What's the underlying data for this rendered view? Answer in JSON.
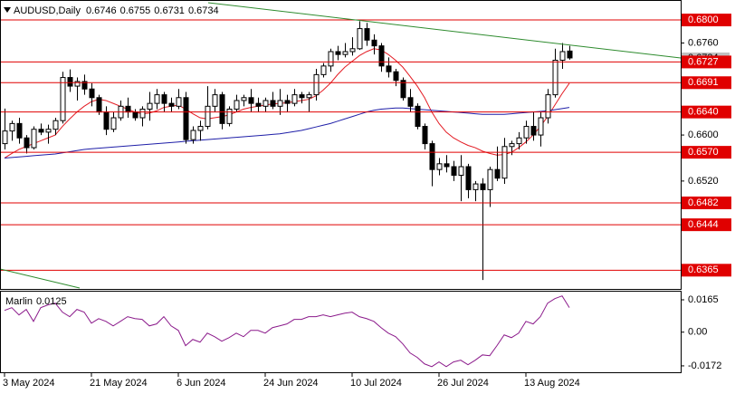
{
  "chart_data": [
    {
      "type": "candlestick",
      "title": "AUDUSD,Daily",
      "categories": [
        "3 May 2024",
        null,
        null,
        null,
        null,
        null,
        null,
        null,
        null,
        null,
        null,
        null,
        "21 May 2024",
        null,
        null,
        null,
        null,
        null,
        null,
        null,
        null,
        null,
        null,
        null,
        "6 Jun 2024",
        null,
        null,
        null,
        null,
        null,
        null,
        null,
        null,
        null,
        null,
        null,
        "24 Jun 2024",
        null,
        null,
        null,
        null,
        null,
        null,
        null,
        null,
        null,
        null,
        null,
        "10 Jul 2024",
        null,
        null,
        null,
        null,
        null,
        null,
        null,
        null,
        null,
        null,
        null,
        "26 Jul 2024",
        null,
        null,
        null,
        null,
        null,
        null,
        null,
        null,
        null,
        null,
        null,
        "13 Aug 2024",
        null,
        null,
        null,
        null,
        null,
        null
      ],
      "open": [
        0.6585,
        0.6607,
        0.662,
        0.6595,
        0.6578,
        0.661,
        0.6605,
        0.661,
        0.6625,
        0.67,
        0.6685,
        0.6693,
        0.668,
        0.6665,
        0.664,
        0.661,
        0.663,
        0.665,
        0.664,
        0.663,
        0.6645,
        0.6655,
        0.667,
        0.6655,
        0.665,
        0.6665,
        0.6592,
        0.6608,
        0.6615,
        0.665,
        0.667,
        0.662,
        0.6645,
        0.666,
        0.6665,
        0.6655,
        0.665,
        0.666,
        0.665,
        0.666,
        0.6655,
        0.667,
        0.6665,
        0.667,
        0.6705,
        0.672,
        0.6745,
        0.674,
        0.6745,
        0.675,
        0.6785,
        0.6765,
        0.6755,
        0.672,
        0.671,
        0.6695,
        0.6665,
        0.665,
        0.6615,
        0.6585,
        0.654,
        0.655,
        0.6545,
        0.653,
        0.6545,
        0.6505,
        0.6515,
        0.6505,
        0.654,
        0.6525,
        0.658,
        0.6585,
        0.6595,
        0.6615,
        0.66,
        0.663,
        0.667,
        0.673,
        0.6746
      ],
      "high": [
        0.6646,
        0.6625,
        0.663,
        0.66,
        0.6615,
        0.662,
        0.6618,
        0.663,
        0.671,
        0.6714,
        0.67,
        0.6705,
        0.669,
        0.667,
        0.665,
        0.664,
        0.666,
        0.6665,
        0.6645,
        0.665,
        0.6675,
        0.668,
        0.6675,
        0.6665,
        0.668,
        0.6675,
        0.6615,
        0.6625,
        0.6685,
        0.668,
        0.6675,
        0.665,
        0.667,
        0.667,
        0.668,
        0.6665,
        0.6665,
        0.6675,
        0.668,
        0.667,
        0.668,
        0.6675,
        0.6675,
        0.6715,
        0.6725,
        0.675,
        0.6755,
        0.676,
        0.677,
        0.6798,
        0.6795,
        0.6775,
        0.676,
        0.6735,
        0.6715,
        0.67,
        0.668,
        0.6655,
        0.662,
        0.659,
        0.656,
        0.6565,
        0.6555,
        0.6565,
        0.655,
        0.652,
        0.6525,
        0.6545,
        0.658,
        0.6595,
        0.659,
        0.6605,
        0.6625,
        0.664,
        0.664,
        0.668,
        0.675,
        0.676,
        0.6755
      ],
      "low": [
        0.6575,
        0.659,
        0.6585,
        0.6568,
        0.6575,
        0.66,
        0.6585,
        0.66,
        0.662,
        0.6675,
        0.666,
        0.667,
        0.665,
        0.6635,
        0.66,
        0.6605,
        0.6625,
        0.663,
        0.6625,
        0.6615,
        0.6625,
        0.6645,
        0.664,
        0.664,
        0.6645,
        0.6585,
        0.6585,
        0.659,
        0.661,
        0.664,
        0.661,
        0.6615,
        0.664,
        0.665,
        0.664,
        0.664,
        0.664,
        0.6645,
        0.6635,
        0.664,
        0.665,
        0.6655,
        0.664,
        0.666,
        0.67,
        0.671,
        0.673,
        0.6735,
        0.6738,
        0.6748,
        0.6755,
        0.674,
        0.671,
        0.67,
        0.6685,
        0.666,
        0.664,
        0.661,
        0.6575,
        0.6511,
        0.653,
        0.6535,
        0.652,
        0.6485,
        0.649,
        0.6485,
        0.6348,
        0.6475,
        0.652,
        0.6515,
        0.6565,
        0.6575,
        0.6585,
        0.659,
        0.658,
        0.662,
        0.6665,
        0.6715,
        0.6731
      ],
      "close": [
        0.6607,
        0.662,
        0.6595,
        0.6578,
        0.661,
        0.6605,
        0.661,
        0.6625,
        0.67,
        0.6685,
        0.6693,
        0.668,
        0.6665,
        0.664,
        0.661,
        0.663,
        0.665,
        0.664,
        0.663,
        0.6645,
        0.6655,
        0.667,
        0.6655,
        0.665,
        0.6665,
        0.6592,
        0.6608,
        0.6615,
        0.665,
        0.667,
        0.662,
        0.6645,
        0.666,
        0.6665,
        0.6655,
        0.665,
        0.666,
        0.665,
        0.666,
        0.6655,
        0.667,
        0.6665,
        0.667,
        0.6705,
        0.672,
        0.6745,
        0.674,
        0.6745,
        0.675,
        0.6785,
        0.6765,
        0.6755,
        0.672,
        0.671,
        0.6695,
        0.6665,
        0.665,
        0.6615,
        0.6585,
        0.654,
        0.655,
        0.6545,
        0.653,
        0.6545,
        0.6505,
        0.6515,
        0.6505,
        0.654,
        0.6525,
        0.658,
        0.6585,
        0.6595,
        0.6615,
        0.66,
        0.663,
        0.667,
        0.673,
        0.6745,
        0.6734
      ],
      "series": [
        {
          "color": "#e31b23",
          "values": [
            0.656,
            0.6568,
            0.6575,
            0.658,
            0.6585,
            0.659,
            0.6595,
            0.66,
            0.6615,
            0.6628,
            0.664,
            0.665,
            0.6658,
            0.6662,
            0.666,
            0.6655,
            0.665,
            0.6645,
            0.664,
            0.6637,
            0.6638,
            0.6642,
            0.6648,
            0.665,
            0.6652,
            0.6645,
            0.6637,
            0.663,
            0.6628,
            0.663,
            0.6632,
            0.6635,
            0.664,
            0.6645,
            0.6648,
            0.665,
            0.6652,
            0.6654,
            0.6655,
            0.6656,
            0.6658,
            0.666,
            0.6662,
            0.6668,
            0.6678,
            0.669,
            0.6705,
            0.6718,
            0.6728,
            0.6738,
            0.6745,
            0.675,
            0.6748,
            0.674,
            0.673,
            0.6718,
            0.6702,
            0.6685,
            0.6665,
            0.664,
            0.662,
            0.6605,
            0.6595,
            0.6588,
            0.6582,
            0.6578,
            0.6572,
            0.6568,
            0.6565,
            0.6566,
            0.657,
            0.6578,
            0.6588,
            0.66,
            0.6615,
            0.6632,
            0.6652,
            0.6672,
            0.669
          ]
        },
        {
          "color": "#1f1fa8",
          "values": [
            0.656,
            0.6561,
            0.6562,
            0.6563,
            0.6564,
            0.6565,
            0.6566,
            0.6567,
            0.6569,
            0.6571,
            0.6573,
            0.6575,
            0.6576,
            0.6577,
            0.6578,
            0.6579,
            0.658,
            0.6581,
            0.6582,
            0.6583,
            0.6584,
            0.6585,
            0.6586,
            0.6587,
            0.6588,
            0.6589,
            0.659,
            0.6591,
            0.6592,
            0.6593,
            0.6594,
            0.6595,
            0.6596,
            0.6597,
            0.6598,
            0.6599,
            0.66,
            0.6601,
            0.6602,
            0.6604,
            0.6606,
            0.6608,
            0.6611,
            0.6614,
            0.6617,
            0.662,
            0.6624,
            0.6628,
            0.6632,
            0.6636,
            0.664,
            0.6643,
            0.6645,
            0.6646,
            0.6647,
            0.6647,
            0.6646,
            0.6645,
            0.6644,
            0.6643,
            0.6642,
            0.6641,
            0.664,
            0.6639,
            0.6638,
            0.6637,
            0.6636,
            0.6636,
            0.6636,
            0.6636,
            0.6637,
            0.6638,
            0.6639,
            0.664,
            0.6641,
            0.6642,
            0.6644,
            0.6646,
            0.6648
          ]
        }
      ],
      "levels": [
        {
          "value": 0.68,
          "label": "0.6800"
        },
        0.6727,
        0.6691,
        {
          "value": 0.664,
          "label": "0.6640"
        },
        {
          "value": 0.657,
          "label": "0.6570"
        },
        0.6482,
        0.6444,
        0.6365
      ],
      "level_color": "#e00000",
      "ylim": [
        0.6334,
        0.683
      ],
      "yticks": [
        {
          "value": 0.676,
          "label": "0.6760"
        },
        {
          "value": 0.66,
          "label": "0.6600"
        },
        {
          "value": 0.652,
          "label": "0.6520"
        }
      ]
    },
    {
      "type": "line",
      "name": "Marlin",
      "color": "#8b1a8b",
      "values": [
        0.0111,
        0.0125,
        0.0088,
        0.0116,
        0.0055,
        0.0125,
        0.0139,
        0.0148,
        0.0102,
        0.0079,
        0.0116,
        0.0102,
        0.0046,
        0.0069,
        0.0055,
        0.0032,
        0.0055,
        0.0079,
        0.0069,
        0.0065,
        0.0032,
        0.0042,
        0.0079,
        0.0032,
        0.0009,
        -0.0069,
        -0.0037,
        -0.0051,
        -0.0005,
        -0.0023,
        -0.0046,
        -0.0028,
        -0.0005,
        -0.0023,
        0.0009,
        0.0009,
        -0.0005,
        0.0023,
        0.0032,
        0.0042,
        0.0065,
        0.0065,
        0.0079,
        0.0079,
        0.0088,
        0.0079,
        0.0088,
        0.0097,
        0.0102,
        0.0079,
        0.0069,
        0.0055,
        0.0023,
        -0.0005,
        -0.0023,
        -0.006,
        -0.0106,
        -0.0129,
        -0.0162,
        -0.0176,
        -0.0152,
        -0.0176,
        -0.0152,
        -0.0143,
        -0.0166,
        -0.0143,
        -0.0116,
        -0.012,
        -0.0069,
        -0.0014,
        -0.0028,
        -0.0005,
        0.0055,
        0.0042,
        0.0079,
        0.0148,
        0.0171,
        0.0185,
        0.0125
      ],
      "ylim": [
        -0.02,
        0.0202
      ],
      "yticks": [
        0.0165,
        {
          "value": 0,
          "label": "0.00"
        },
        -0.0172
      ]
    }
  ]
}
